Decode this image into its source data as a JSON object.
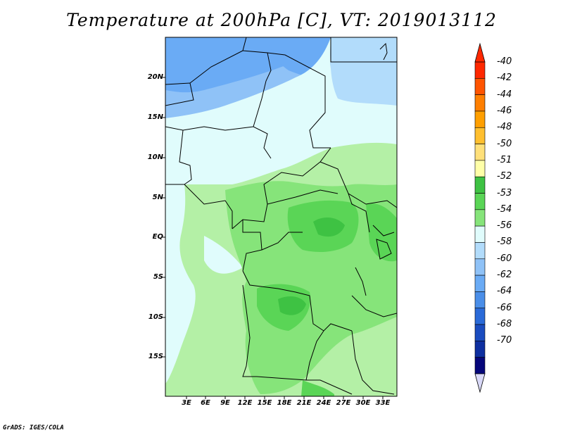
{
  "title": "Temperature at 200hPa [C], VT: 2019013112",
  "credit": "GrADS: IGES/COLA",
  "map": {
    "lat_labels": [
      "20N",
      "15N",
      "10N",
      "5N",
      "EQ",
      "5S",
      "10S",
      "15S"
    ],
    "lon_labels": [
      "3E",
      "6E",
      "9E",
      "12E",
      "15E",
      "18E",
      "21E",
      "24E",
      "27E",
      "30E",
      "33E"
    ],
    "field_colors": {
      "blue_dark": "#6aabf5",
      "blue_mid": "#8fc2f7",
      "blue_light": "#b2dcfb",
      "cyan_pale": "#e0fcfc",
      "green_pale": "#b4f0a6",
      "green_light": "#86e47a",
      "green_mid": "#5ad556",
      "green_dark": "#3ec243"
    }
  },
  "colorbar": {
    "labels": [
      "-40",
      "-42",
      "-44",
      "-46",
      "-48",
      "-50",
      "-51",
      "-52",
      "-53",
      "-54",
      "-56",
      "-58",
      "-60",
      "-62",
      "-64",
      "-66",
      "-68",
      "-70"
    ],
    "colors": [
      "#ff2800",
      "#ff5400",
      "#ff7f00",
      "#ff9f00",
      "#ffbf2f",
      "#ffe07a",
      "#ffffa8",
      "#3ec243",
      "#5ad556",
      "#86e47a",
      "#e0fcfc",
      "#b2dcfb",
      "#8fc2f7",
      "#6aabf5",
      "#4a8ee8",
      "#2a6ad8",
      "#1a4cbf",
      "#0e2fa0",
      "#05067a"
    ],
    "tip_top_color": "#ff2800",
    "tip_bottom_color": "#d9d9f8"
  }
}
